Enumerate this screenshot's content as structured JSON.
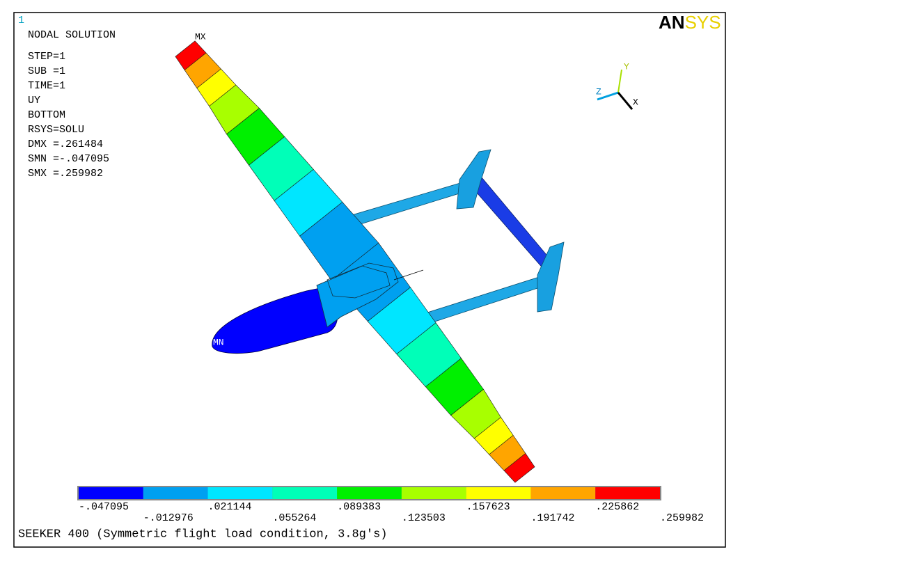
{
  "window_number": "1",
  "logo": {
    "first": "AN",
    "second": "SYS"
  },
  "info": [
    "NODAL SOLUTION",
    "STEP=1",
    "SUB =1",
    "TIME=1",
    "UY",
    "BOTTOM",
    "RSYS=SOLU",
    "DMX =.261484",
    "SMN =-.047095",
    "SMX =.259982"
  ],
  "markers": {
    "max": "MX",
    "min": "MN"
  },
  "triad": {
    "x": "X",
    "y": "Y",
    "z": "Z"
  },
  "legend": {
    "colors": [
      "#0000ff",
      "#00a0f0",
      "#00e6ff",
      "#00ffb8",
      "#00f000",
      "#a8ff00",
      "#ffff00",
      "#ffa500",
      "#ff0000"
    ],
    "labels": [
      "-.047095",
      "-.012976",
      ".021144",
      ".055264",
      ".089383",
      ".123503",
      ".157623",
      ".191742",
      ".225862",
      ".259982"
    ]
  },
  "caption": "SEEKER 400 (Symmetric flight load condition, 3.8g's)"
}
